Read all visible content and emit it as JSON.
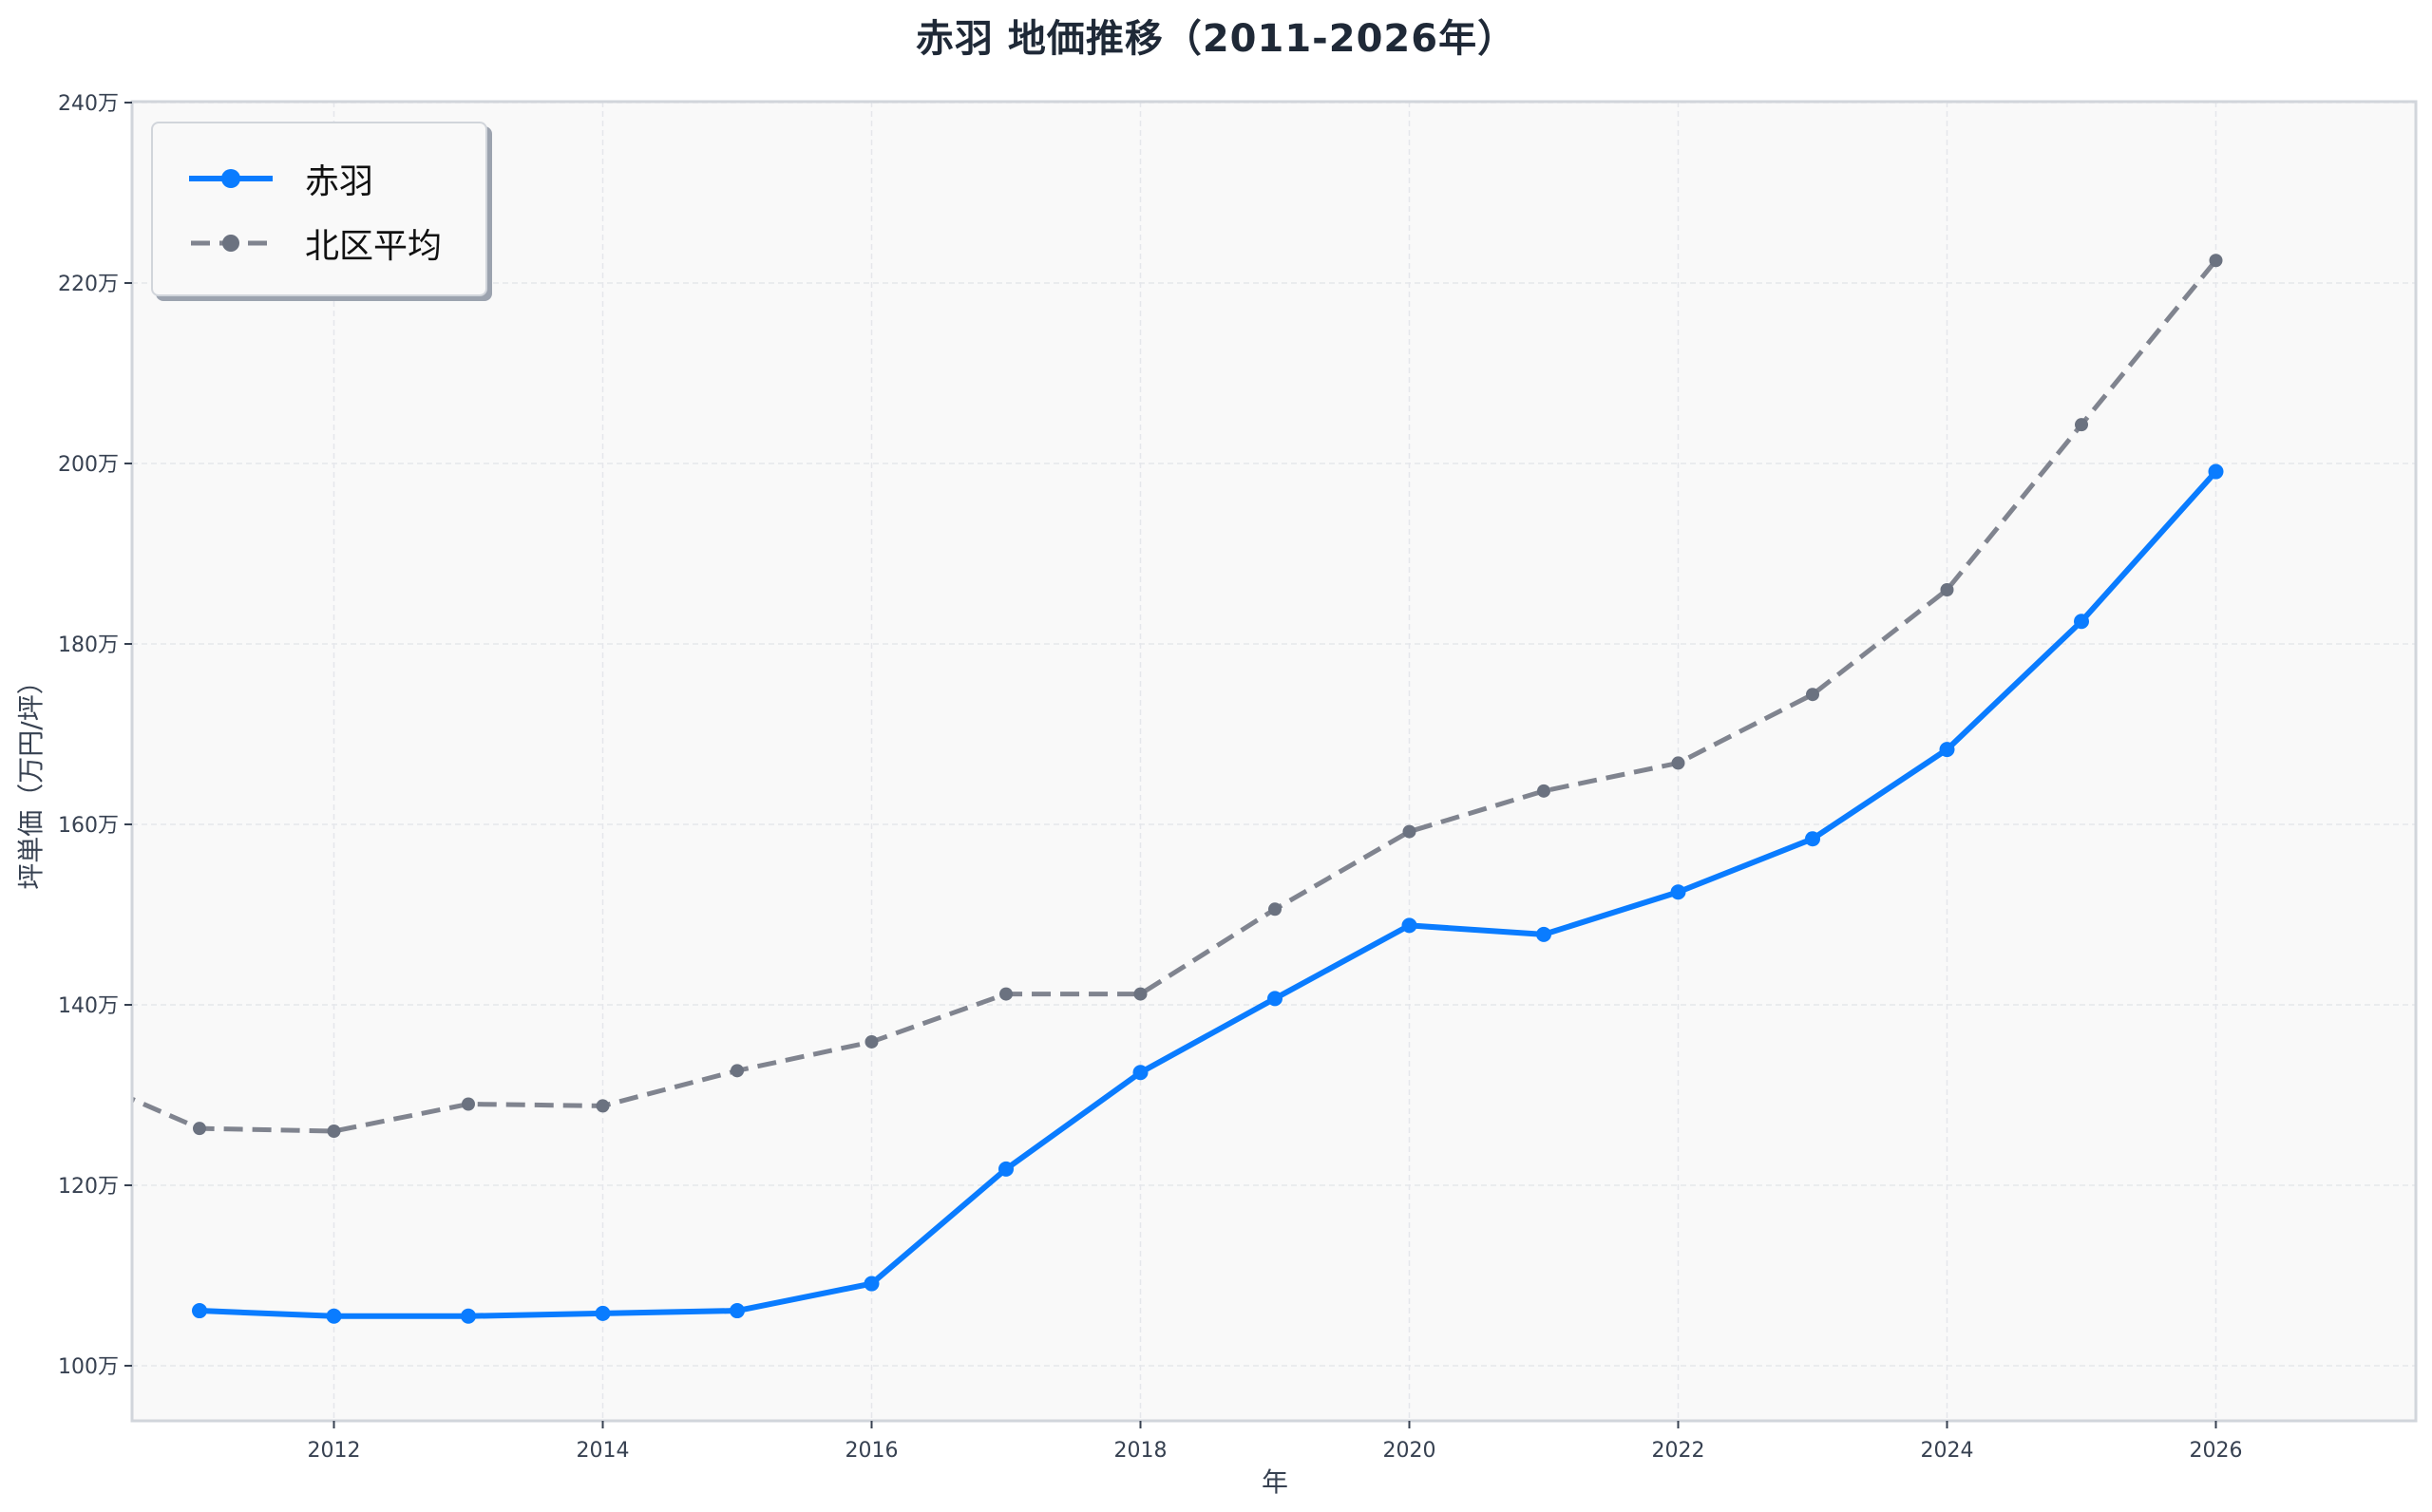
{
  "title": "赤羽 地価推移（2011-2026年）",
  "legend": {
    "items": [
      {
        "label": "赤羽",
        "color": "#0a7cff",
        "style": "solid",
        "marker": "circle"
      },
      {
        "label": "北区平均",
        "color": "#80848f",
        "marker_color": "#6b7280",
        "style": "dashed",
        "marker": "circle"
      }
    ]
  },
  "axes": {
    "xlabel": "年",
    "ylabel": "坪単価（万円/坪）",
    "x_ticks": [
      "2012",
      "2014",
      "2016",
      "2018",
      "2020",
      "2022",
      "2024",
      "2026"
    ],
    "y_ticks": [
      "100万",
      "120万",
      "140万",
      "160万",
      "180万",
      "200万",
      "220万",
      "240万"
    ]
  },
  "chart_data": {
    "type": "line",
    "title": "赤羽 地価推移（2011-2026年）",
    "xlabel": "年",
    "ylabel": "坪単価（万円/坪）",
    "x": [
      2011,
      2012,
      2013,
      2014,
      2015,
      2016,
      2017,
      2018,
      2019,
      2020,
      2021,
      2022,
      2023,
      2024,
      2025,
      2026
    ],
    "series": [
      {
        "name": "赤羽",
        "color": "#0a7cff",
        "linestyle": "solid",
        "values": [
          106.1,
          105.5,
          105.5,
          105.8,
          106.1,
          109.1,
          121.8,
          132.5,
          140.7,
          148.8,
          147.8,
          152.5,
          158.4,
          168.3,
          182.5,
          199.1
        ]
      },
      {
        "name": "北区平均",
        "color": "#80848f",
        "linestyle": "dashed",
        "clipped_left_point": {
          "x": 2010,
          "y": 132.8
        },
        "values": [
          126.3,
          126.0,
          129.0,
          128.8,
          132.7,
          135.9,
          141.2,
          141.2,
          150.6,
          159.2,
          163.7,
          166.8,
          174.4,
          186.0,
          204.3,
          222.5
        ]
      }
    ],
    "xlim": [
      2010.5,
      2027.5
    ],
    "ylim": [
      94,
      240
    ],
    "x_ticks": [
      2012,
      2014,
      2016,
      2018,
      2020,
      2022,
      2024,
      2026
    ],
    "y_ticks": [
      100,
      120,
      140,
      160,
      180,
      200,
      220,
      240
    ],
    "y_tick_suffix": "万",
    "grid": true,
    "legend_position": "upper left"
  }
}
